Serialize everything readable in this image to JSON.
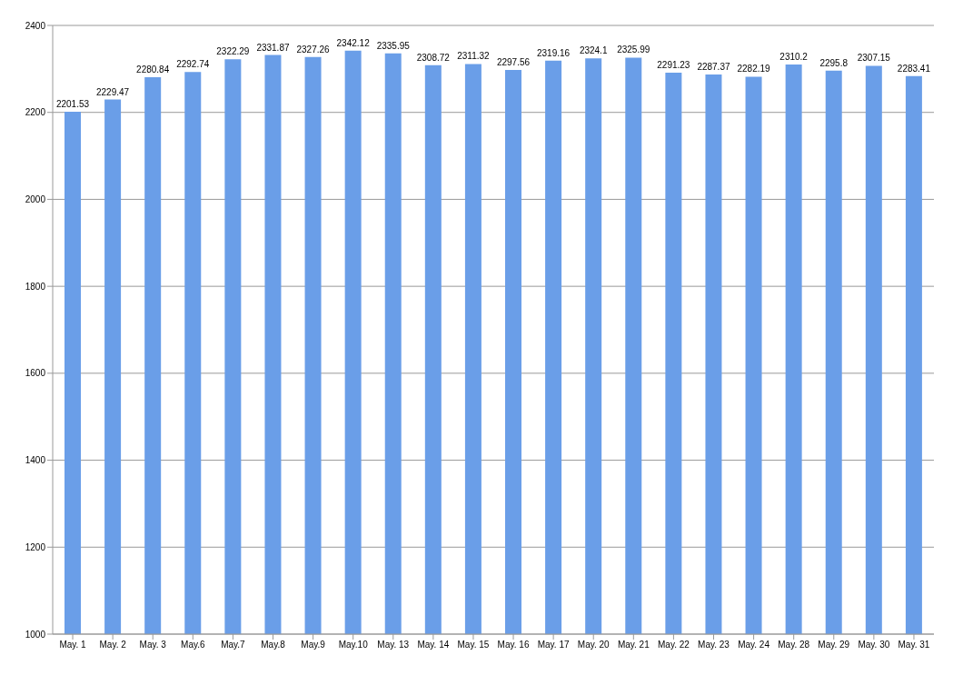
{
  "chart_data": {
    "type": "bar",
    "categories": [
      "May. 1",
      "May. 2",
      "May. 3",
      "May.6",
      "May.7",
      "May.8",
      "May.9",
      "May.10",
      "May. 13",
      "May. 14",
      "May. 15",
      "May. 16",
      "May. 17",
      "May. 20",
      "May. 21",
      "May. 22",
      "May. 23",
      "May. 24",
      "May. 28",
      "May. 29",
      "May. 30",
      "May. 31"
    ],
    "values": [
      2201.53,
      2229.47,
      2280.84,
      2292.74,
      2322.29,
      2331.87,
      2327.26,
      2342.12,
      2335.95,
      2308.72,
      2311.32,
      2297.56,
      2319.16,
      2324.1,
      2325.99,
      2291.23,
      2287.37,
      2282.19,
      2310.2,
      2295.8,
      2307.15,
      2283.41
    ],
    "color": "#6a9ee8",
    "ylim": [
      1000,
      2400
    ],
    "yticks": [
      1000,
      1200,
      1400,
      1600,
      1800,
      2000,
      2200,
      2400
    ],
    "grid": "y",
    "data_labels": true
  }
}
